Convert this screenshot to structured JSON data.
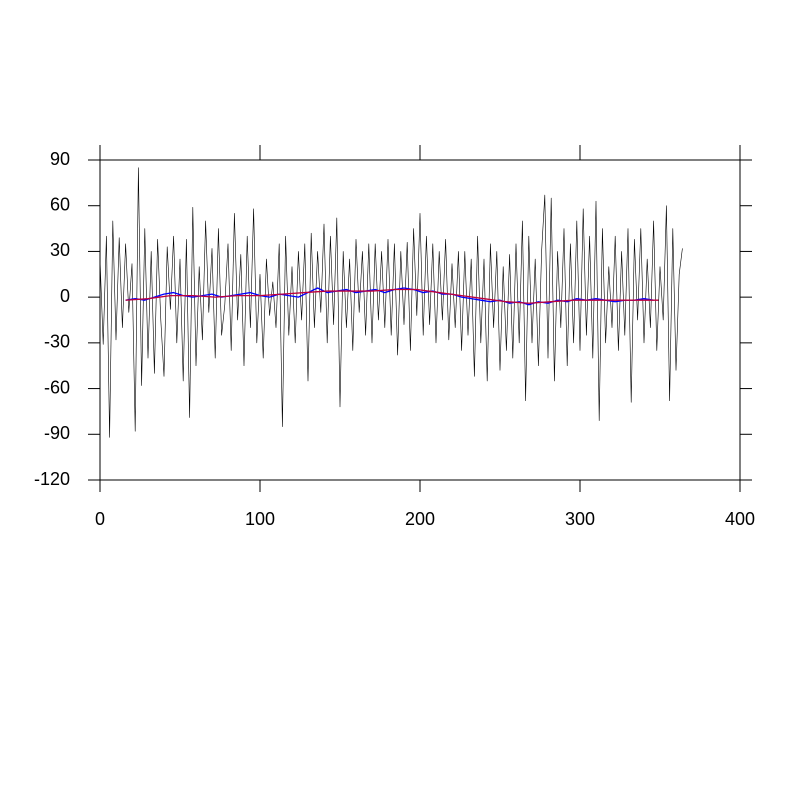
{
  "chart_data": {
    "type": "line",
    "xlim": [
      0,
      400
    ],
    "xticks": [
      0,
      100,
      200,
      300,
      400
    ],
    "ylim": [
      -120,
      90
    ],
    "yticks": [
      -120,
      -90,
      -60,
      -30,
      0,
      30,
      60,
      90
    ],
    "series": [
      {
        "color": "#000000",
        "x": [
          0,
          2,
          4,
          6,
          8,
          10,
          12,
          14,
          16,
          18,
          20,
          22,
          24,
          26,
          28,
          30,
          32,
          34,
          36,
          38,
          40,
          42,
          44,
          46,
          48,
          50,
          52,
          54,
          56,
          58,
          60,
          62,
          64,
          66,
          68,
          70,
          72,
          74,
          76,
          78,
          80,
          82,
          84,
          86,
          88,
          90,
          92,
          94,
          96,
          98,
          100,
          102,
          104,
          106,
          108,
          110,
          112,
          114,
          116,
          118,
          120,
          122,
          124,
          126,
          128,
          130,
          132,
          134,
          136,
          138,
          140,
          142,
          144,
          146,
          148,
          150,
          152,
          154,
          156,
          158,
          160,
          162,
          164,
          166,
          168,
          170,
          172,
          174,
          176,
          178,
          180,
          182,
          184,
          186,
          188,
          190,
          192,
          194,
          196,
          198,
          200,
          202,
          204,
          206,
          208,
          210,
          212,
          214,
          216,
          218,
          220,
          222,
          224,
          226,
          228,
          230,
          232,
          234,
          236,
          238,
          240,
          242,
          244,
          246,
          248,
          250,
          252,
          254,
          256,
          258,
          260,
          262,
          264,
          266,
          268,
          270,
          272,
          274,
          276,
          278,
          280,
          282,
          284,
          286,
          288,
          290,
          292,
          294,
          296,
          298,
          300,
          302,
          304,
          306,
          308,
          310,
          312,
          314,
          316,
          318,
          320,
          322,
          324,
          326,
          328,
          330,
          332,
          334,
          336,
          338,
          340,
          342,
          344,
          346,
          348,
          350,
          352,
          354,
          356,
          358,
          360,
          362,
          364
        ],
        "values": [
          25,
          -31,
          40,
          -92,
          50,
          -28,
          39,
          -20,
          35,
          -10,
          22,
          -88,
          85,
          -58,
          45,
          -40,
          30,
          -50,
          38,
          -15,
          -52,
          33,
          -8,
          40,
          -30,
          25,
          -55,
          38,
          -79,
          59,
          -45,
          20,
          -28,
          50,
          -10,
          32,
          -40,
          45,
          -25,
          -5,
          35,
          -35,
          55,
          -15,
          28,
          -45,
          40,
          -20,
          58,
          -30,
          15,
          -40,
          25,
          -12,
          10,
          -20,
          35,
          -85,
          40,
          -25,
          20,
          -30,
          30,
          -15,
          35,
          -55,
          42,
          -20,
          30,
          -10,
          48,
          -30,
          40,
          -18,
          52,
          -72,
          30,
          -20,
          25,
          -35,
          38,
          -10,
          30,
          -25,
          35,
          -30,
          35,
          -15,
          30,
          -20,
          38,
          -25,
          35,
          -38,
          30,
          -18,
          36,
          -35,
          45,
          -12,
          55,
          -25,
          40,
          -18,
          35,
          -30,
          30,
          -15,
          38,
          -28,
          22,
          -20,
          30,
          -35,
          30,
          -25,
          25,
          -52,
          40,
          -30,
          25,
          -55,
          35,
          -20,
          30,
          -48,
          20,
          -35,
          28,
          -40,
          35,
          -30,
          50,
          -68,
          40,
          -30,
          25,
          -45,
          30,
          67,
          -40,
          65,
          -55,
          30,
          -20,
          45,
          -45,
          35,
          -30,
          50,
          -35,
          58,
          -25,
          40,
          -40,
          63,
          -81,
          45,
          -30,
          20,
          -20,
          40,
          -35,
          30,
          -25,
          45,
          -69,
          38,
          -15,
          45,
          -30,
          25,
          -20,
          50,
          -35,
          20,
          -15,
          60,
          -68,
          45,
          -48,
          15,
          32
        ]
      },
      {
        "color": "#0000ff",
        "x": [
          16,
          22,
          28,
          34,
          40,
          46,
          52,
          58,
          64,
          70,
          76,
          82,
          88,
          94,
          100,
          106,
          112,
          118,
          124,
          130,
          136,
          142,
          148,
          154,
          160,
          166,
          172,
          178,
          184,
          190,
          196,
          202,
          208,
          214,
          220,
          226,
          232,
          238,
          244,
          250,
          256,
          262,
          268,
          274,
          280,
          286,
          292,
          298,
          304,
          310,
          316,
          322,
          328,
          334,
          340,
          346
        ],
        "values": [
          -2,
          -1,
          -2,
          0,
          2,
          3,
          1,
          0,
          1,
          2,
          0,
          1,
          2,
          3,
          1,
          0,
          2,
          1,
          0,
          3,
          6,
          3,
          4,
          5,
          3,
          4,
          5,
          3,
          5,
          6,
          5,
          3,
          4,
          2,
          2,
          0,
          -1,
          -2,
          -3,
          -2,
          -4,
          -3,
          -5,
          -3,
          -4,
          -2,
          -3,
          -1,
          -2,
          -1,
          -2,
          -3,
          -2,
          -2,
          -1,
          -2
        ]
      },
      {
        "color": "#c0003c",
        "x": [
          16,
          30,
          44,
          58,
          72,
          86,
          100,
          114,
          128,
          142,
          156,
          170,
          184,
          198,
          212,
          226,
          240,
          254,
          268,
          282,
          296,
          310,
          324,
          338,
          349
        ],
        "values": [
          -2,
          -1,
          1,
          1,
          0,
          1,
          1,
          2,
          3,
          4,
          4,
          4,
          5,
          5,
          3,
          1,
          -1,
          -3,
          -4,
          -3,
          -2,
          -2,
          -2,
          -2,
          -2
        ]
      }
    ]
  }
}
